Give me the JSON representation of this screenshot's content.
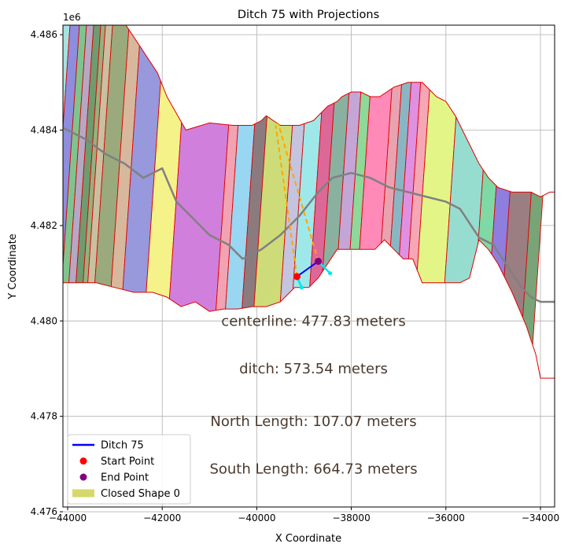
{
  "chart_data": {
    "type": "line",
    "title": "Ditch 75 with Projections",
    "xlabel": "X Coordinate",
    "ylabel": "Y Coordinate",
    "y_offset_label": "1e6",
    "xlim": [
      -44100,
      -33700
    ],
    "ylim": [
      4.4761,
      4.4862
    ],
    "x_ticks": [
      -44000,
      -42000,
      -40000,
      -38000,
      -36000,
      -34000
    ],
    "x_tick_labels": [
      "−44000",
      "−42000",
      "−40000",
      "−38000",
      "−36000",
      "−34000"
    ],
    "y_ticks": [
      4.476,
      4.478,
      4.48,
      4.482,
      4.484,
      4.486
    ],
    "y_tick_labels": [
      "4.476",
      "4.478",
      "4.480",
      "4.482",
      "4.484",
      "4.486"
    ],
    "grid": true,
    "legend_position": "bottom-left",
    "legend": [
      {
        "label": "Ditch 75",
        "kind": "line",
        "color": "#0000ff"
      },
      {
        "label": "Start Point",
        "kind": "dot",
        "color": "#ff0000"
      },
      {
        "label": "End Point",
        "kind": "dot",
        "color": "#800080"
      },
      {
        "label": "Closed Shape 0",
        "kind": "patch",
        "color": "#d6d96a"
      }
    ],
    "annotations": [
      {
        "text": "centerline: 477.83 meters",
        "x": -38800,
        "y": 4.48
      },
      {
        "text": "ditch: 573.54 meters",
        "x": -38800,
        "y": 4.479
      },
      {
        "text": "North Length: 107.07 meters",
        "x": -38800,
        "y": 4.4779
      },
      {
        "text": "South Length: 664.73 meters",
        "x": -38800,
        "y": 4.4769
      }
    ],
    "series": [
      {
        "name": "Ditch 75",
        "color": "#0000ff",
        "x": [
          -39150,
          -38700
        ],
        "y": [
          4.48093,
          4.48125
        ]
      },
      {
        "name": "Start Point",
        "color": "#ff0000",
        "x": [
          -39150
        ],
        "y": [
          4.48093
        ]
      },
      {
        "name": "End Point",
        "color": "#800080",
        "x": [
          -38700
        ],
        "y": [
          4.48125
        ]
      }
    ],
    "centerline": {
      "color": "#808080",
      "x": [
        -44100,
        -43600,
        -43200,
        -42800,
        -42400,
        -42000,
        -41700,
        -41400,
        -41000,
        -40600,
        -40300,
        -39900,
        -39500,
        -39100,
        -38700,
        -38400,
        -38000,
        -37600,
        -37200,
        -36800,
        -36400,
        -36000,
        -35700,
        -35500,
        -35300,
        -35000,
        -34800,
        -34600,
        -34400,
        -34200,
        -34000,
        -33700
      ],
      "y": [
        4.48405,
        4.4838,
        4.4835,
        4.4833,
        4.483,
        4.4832,
        4.4825,
        4.4822,
        4.4818,
        4.4816,
        4.4813,
        4.4815,
        4.4818,
        4.4822,
        4.4827,
        4.483,
        4.4831,
        4.483,
        4.4828,
        4.4827,
        4.4826,
        4.4825,
        4.48235,
        4.48205,
        4.48175,
        4.4816,
        4.4813,
        4.481,
        4.4807,
        4.4805,
        4.4804,
        4.4804
      ]
    },
    "projections": {
      "color": "#ffa500",
      "north": {
        "x": [
          -39150,
          -39600
        ],
        "y": [
          4.48093,
          4.4841
        ]
      },
      "south": {
        "x": [
          -38700,
          -39550
        ],
        "y": [
          4.48125,
          4.48415
        ]
      }
    },
    "cyan_ticks": {
      "color": "#00e5ee",
      "segments": [
        {
          "x": [
            -39150,
            -39050
          ],
          "y": [
            4.48093,
            4.4807
          ]
        },
        {
          "x": [
            -38700,
            -38450
          ],
          "y": [
            4.48125,
            4.481
          ]
        }
      ]
    },
    "closed_shape": {
      "name": "Closed Shape 0",
      "edge": "#dd0000",
      "outline": {
        "x": [
          -44100,
          -42800,
          -42500,
          -42100,
          -41900,
          -41500,
          -41000,
          -40500,
          -40300,
          -40100,
          -39900,
          -39800,
          -39500,
          -39100,
          -38800,
          -38500,
          -38300,
          -38200,
          -38000,
          -37800,
          -37600,
          -37400,
          -37100,
          -36800,
          -36500,
          -36200,
          -36000,
          -35800,
          -35600,
          -35300,
          -35100,
          -34900,
          -34600,
          -34400,
          -34200,
          -34000,
          -33800,
          -33700,
          -33700,
          -33700,
          -34000,
          -34100,
          -34300,
          -34600,
          -34900,
          -35100,
          -35300,
          -35500,
          -35700,
          -35900,
          -36100,
          -36300,
          -36500,
          -36700,
          -36900,
          -37100,
          -37300,
          -37500,
          -37700,
          -37900,
          -38100,
          -38300,
          -38500,
          -38700,
          -38900,
          -39200,
          -39500,
          -39800,
          -40100,
          -40400,
          -40700,
          -41000,
          -41300,
          -41600,
          -41900,
          -42200,
          -42600,
          -43000,
          -43400,
          -43800,
          -44100
        ],
        "y": [
          4.48625,
          4.48625,
          4.4858,
          4.4852,
          4.4847,
          4.484,
          4.48415,
          4.4841,
          4.4841,
          4.4841,
          4.4842,
          4.4843,
          4.4841,
          4.4841,
          4.4842,
          4.4845,
          4.4846,
          4.4847,
          4.4848,
          4.4848,
          4.4847,
          4.4847,
          4.4849,
          4.485,
          4.485,
          4.4847,
          4.4846,
          4.4843,
          4.4839,
          4.4833,
          4.483,
          4.4828,
          4.4827,
          4.4827,
          4.4827,
          4.4826,
          4.4827,
          4.4827,
          4.4808,
          4.4788,
          4.4788,
          4.4793,
          4.4799,
          4.4806,
          4.4812,
          4.4815,
          4.4817,
          4.4809,
          4.4808,
          4.4808,
          4.4808,
          4.4808,
          4.4808,
          4.4813,
          4.4813,
          4.4815,
          4.4817,
          4.4815,
          4.4815,
          4.4815,
          4.4815,
          4.4815,
          4.4812,
          4.4809,
          4.4807,
          4.4807,
          4.4804,
          4.4803,
          4.4803,
          4.48025,
          4.48025,
          4.4802,
          4.4804,
          4.4803,
          4.4805,
          4.4806,
          4.4806,
          4.4807,
          4.4808,
          4.4808,
          4.4808
        ]
      },
      "stripes": [
        {
          "xl": -44100,
          "xr": -43950,
          "color": "#a6e3e0"
        },
        {
          "xl": -43950,
          "xr": -43750,
          "color": "#8e8ede"
        },
        {
          "xl": -43750,
          "xr": -43600,
          "color": "#7fc48e"
        },
        {
          "xl": -43600,
          "xr": -43450,
          "color": "#b4a8c4"
        },
        {
          "xl": -43450,
          "xr": -43300,
          "color": "#6f9c6f"
        },
        {
          "xl": -43300,
          "xr": -43200,
          "color": "#96b07e"
        },
        {
          "xl": -43200,
          "xr": -43050,
          "color": "#c8c0a0"
        },
        {
          "xl": -43050,
          "xr": -42700,
          "color": "#9aaa7c"
        },
        {
          "xl": -42700,
          "xr": -42450,
          "color": "#d7b89c"
        },
        {
          "xl": -42450,
          "xr": -41950,
          "color": "#9898dc"
        },
        {
          "xl": -41950,
          "xr": -41450,
          "color": "#f5f28a"
        },
        {
          "xl": -41450,
          "xr": -40450,
          "color": "#d17fdc"
        },
        {
          "xl": -40450,
          "xr": -40250,
          "color": "#f2a3b3"
        },
        {
          "xl": -40250,
          "xr": -39900,
          "color": "#98d6f2"
        },
        {
          "xl": -39900,
          "xr": -39650,
          "color": "#8b7b7e"
        },
        {
          "xl": -39650,
          "xr": -39100,
          "color": "#cddc78"
        },
        {
          "xl": -39100,
          "xr": -38850,
          "color": "#c4c4de"
        },
        {
          "xl": -38850,
          "xr": -38500,
          "color": "#9fe8ea"
        },
        {
          "xl": -38500,
          "xr": -38250,
          "color": "#dc6898"
        },
        {
          "xl": -38250,
          "xr": -37950,
          "color": "#8ab0a0"
        },
        {
          "xl": -37950,
          "xr": -37700,
          "color": "#c4a6d6"
        },
        {
          "xl": -37700,
          "xr": -37500,
          "color": "#8ed89a"
        },
        {
          "xl": -37500,
          "xr": -37050,
          "color": "#ff8ab8"
        },
        {
          "xl": -37050,
          "xr": -36850,
          "color": "#e9a3b0"
        },
        {
          "xl": -36850,
          "xr": -36650,
          "color": "#8ab6c4"
        },
        {
          "xl": -36650,
          "xr": -36450,
          "color": "#e090e0"
        },
        {
          "xl": -36450,
          "xr": -36250,
          "color": "#f5a7b6"
        },
        {
          "xl": -36250,
          "xr": -35650,
          "color": "#e3f587"
        },
        {
          "xl": -35650,
          "xr": -35000,
          "color": "#96ddd0"
        },
        {
          "xl": -35000,
          "xr": -34700,
          "color": "#7fd9a4"
        },
        {
          "xl": -34700,
          "xr": -34400,
          "color": "#8e7ede"
        },
        {
          "xl": -34400,
          "xr": -33950,
          "color": "#9b7e82"
        },
        {
          "xl": -33950,
          "xr": -33700,
          "color": "#78a478"
        }
      ]
    }
  }
}
